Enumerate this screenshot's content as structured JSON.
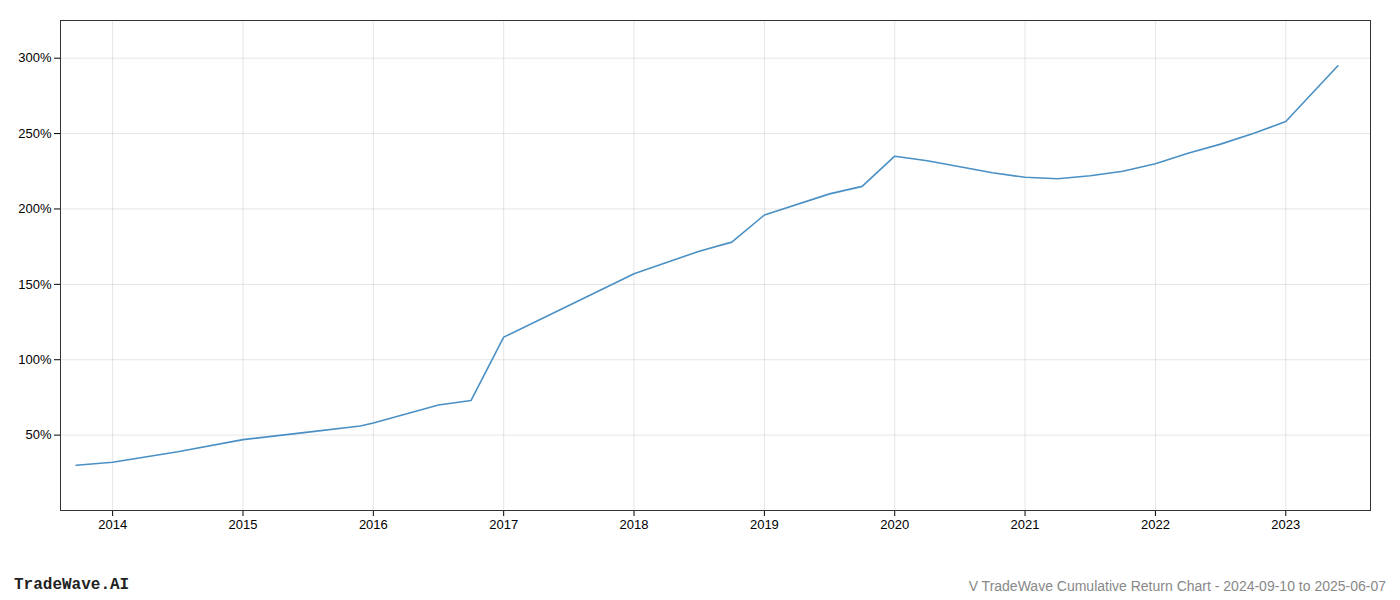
{
  "chart_data": {
    "type": "line",
    "title": "V TradeWave Cumulative Return Chart - 2024-09-10 to 2025-06-07",
    "annotations": [
      "TradeWave.AI"
    ],
    "x": [
      2013.72,
      2014.0,
      2014.5,
      2015.0,
      2015.5,
      2015.9,
      2016.0,
      2016.5,
      2016.75,
      2017.0,
      2017.5,
      2018.0,
      2018.5,
      2018.75,
      2019.0,
      2019.5,
      2019.75,
      2020.0,
      2020.25,
      2020.5,
      2020.75,
      2021.0,
      2021.25,
      2021.5,
      2021.75,
      2022.0,
      2022.25,
      2022.5,
      2022.75,
      2023.0,
      2023.4
    ],
    "values": [
      30,
      32,
      39,
      47,
      52,
      56,
      58,
      70,
      73,
      115,
      136,
      157,
      172,
      178,
      196,
      210,
      215,
      235,
      232,
      228,
      224,
      221,
      220,
      222,
      225,
      230,
      237,
      243,
      250,
      258,
      295
    ],
    "color": "#4a90c4",
    "xlim": [
      2013.6,
      2023.65
    ],
    "xticks": [
      2014,
      2015,
      2016,
      2017,
      2018,
      2019,
      2020,
      2021,
      2022,
      2023
    ],
    "ylim": [
      0,
      325
    ],
    "yticks": [
      {
        "value": 50,
        "label": "50%"
      },
      {
        "value": 100,
        "label": "100%"
      },
      {
        "value": 150,
        "label": "150%"
      },
      {
        "value": 200,
        "label": "200%"
      },
      {
        "value": 250,
        "label": "250%"
      },
      {
        "value": 300,
        "label": "300%"
      }
    ],
    "grid": true
  }
}
